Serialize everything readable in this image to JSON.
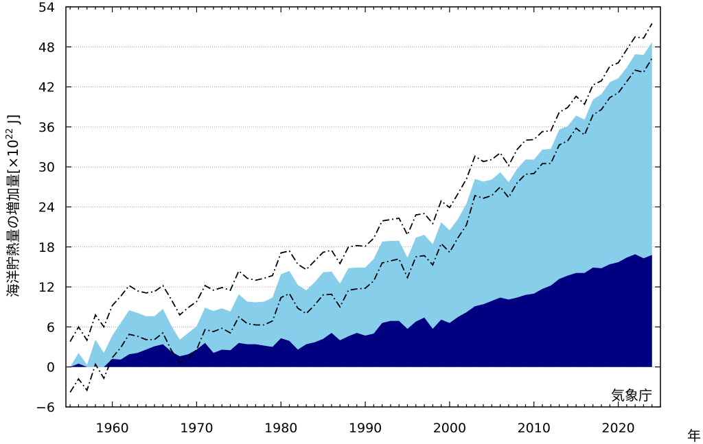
{
  "chart_data": {
    "type": "area",
    "ylabel": "海洋貯熱量の増加量",
    "ylabel_unit": "[×10",
    "ylabel_exp": "22",
    "ylabel_unit_end": " J]",
    "xlabel": "年",
    "credit": "気象庁",
    "xlim": [
      1954.5,
      2025
    ],
    "ylim": [
      -6,
      54
    ],
    "xticks": [
      1960,
      1970,
      1980,
      1990,
      2000,
      2010,
      2020
    ],
    "yticks": [
      -6,
      0,
      6,
      12,
      18,
      24,
      30,
      36,
      42,
      48,
      54
    ],
    "ytick_labels": [
      "−6",
      "0",
      "6",
      "12",
      "18",
      "24",
      "30",
      "36",
      "42",
      "48",
      "54"
    ],
    "xtick_labels": [
      "1960",
      "1970",
      "1980",
      "1990",
      "2000",
      "2010",
      "2020"
    ],
    "grid": "horizontal dotted",
    "colors": {
      "upper_layer": "#87ceeb",
      "lower_layer": "#000080",
      "uncertainty": "#000000"
    },
    "x": [
      1955,
      1956,
      1957,
      1958,
      1959,
      1960,
      1961,
      1962,
      1963,
      1964,
      1965,
      1966,
      1967,
      1968,
      1969,
      1970,
      1971,
      1972,
      1973,
      1974,
      1975,
      1976,
      1977,
      1978,
      1979,
      1980,
      1981,
      1982,
      1983,
      1984,
      1985,
      1986,
      1987,
      1988,
      1989,
      1990,
      1991,
      1992,
      1993,
      1994,
      1995,
      1996,
      1997,
      1998,
      1999,
      2000,
      2001,
      2002,
      2003,
      2004,
      2005,
      2006,
      2007,
      2008,
      2009,
      2010,
      2011,
      2012,
      2013,
      2014,
      2015,
      2016,
      2017,
      2018,
      2019,
      2020,
      2021,
      2022,
      2023,
      2024
    ],
    "series": [
      {
        "values": [
          0,
          2.1,
          0.3,
          4.1,
          2.1,
          4.7,
          6.6,
          8.5,
          8.1,
          7.6,
          7.6,
          8.7,
          6.2,
          4.1,
          5.1,
          6.1,
          8.9,
          8.4,
          8.8,
          8.3,
          10.9,
          9.8,
          9.7,
          9.8,
          10.4,
          13.9,
          14.4,
          12.3,
          11.5,
          12.7,
          14.2,
          14.3,
          12.5,
          14.8,
          14.9,
          14.9,
          16.2,
          18.8,
          18.9,
          18.9,
          16.4,
          19.4,
          19.8,
          18.4,
          21.7,
          20.5,
          22.2,
          24.5,
          28.2,
          27.8,
          28.1,
          29.2,
          27.7,
          29.7,
          31.1,
          31.1,
          32.6,
          32.7,
          35.6,
          36.1,
          37.7,
          37.1,
          40.1,
          40.9,
          42.7,
          43.3,
          44.9,
          46.9,
          46.8,
          48.7
        ]
      },
      {
        "values": [
          0,
          0.5,
          0,
          0,
          0,
          1.2,
          1.1,
          1.9,
          2.1,
          2.6,
          3.1,
          3.4,
          2.3,
          1.6,
          1.9,
          2.6,
          3.6,
          2.1,
          2.6,
          2.5,
          3.6,
          3.4,
          3.4,
          3.2,
          3,
          4.3,
          3.9,
          2.6,
          3.4,
          3.7,
          4.2,
          5.1,
          4,
          4.6,
          5.1,
          4.7,
          5,
          6.6,
          6.9,
          6.9,
          5.7,
          6.8,
          7.4,
          5.7,
          7.1,
          6.6,
          7.5,
          8.2,
          9.1,
          9.4,
          9.9,
          10.4,
          10.1,
          10.4,
          10.8,
          11,
          11.7,
          12.2,
          13.2,
          13.7,
          14.1,
          14.1,
          14.9,
          14.8,
          15.4,
          15.7,
          16.4,
          16.9,
          16.3,
          16.8
        ]
      },
      {
        "values": [
          3.8,
          6,
          4,
          7.8,
          6,
          9.2,
          10.6,
          12.2,
          11.4,
          11.1,
          11.3,
          12.2,
          10.1,
          7.8,
          8.9,
          9.8,
          12.2,
          11.5,
          11.9,
          11.5,
          14.4,
          13.3,
          13,
          13.3,
          13.7,
          17.1,
          17.4,
          15.4,
          14.6,
          15.9,
          17.2,
          17.5,
          15.5,
          18,
          18.2,
          18.1,
          19.3,
          21.9,
          22.1,
          22.3,
          19.8,
          22.8,
          23,
          21.5,
          24.9,
          23.9,
          26,
          28.2,
          31.6,
          30.8,
          31.1,
          32.1,
          30.2,
          32.6,
          34,
          34.1,
          35.3,
          35.4,
          38.2,
          38.9,
          40.6,
          39.4,
          42.3,
          42.9,
          45.1,
          45.6,
          47.6,
          49.5,
          49.3,
          51.5
        ]
      },
      {
        "values": [
          -3.8,
          -1.8,
          -3.5,
          0.4,
          -1.7,
          1.4,
          2.9,
          4.9,
          4.6,
          4.1,
          4.1,
          5.1,
          2.5,
          0.6,
          1.3,
          2.6,
          5.6,
          5.3,
          5.8,
          5.1,
          7.5,
          6.5,
          6.3,
          6.3,
          6.9,
          10.4,
          11,
          8.8,
          8,
          9.3,
          10.8,
          10.9,
          9,
          11.5,
          11.7,
          11.8,
          12.9,
          15.6,
          15.9,
          16.2,
          13.4,
          16.5,
          16.7,
          15.3,
          18.5,
          17.2,
          19.4,
          21.3,
          25.7,
          25.3,
          25.7,
          27,
          25.4,
          27.6,
          28.9,
          29,
          30.5,
          30.5,
          33.3,
          33.9,
          35.8,
          34.8,
          37.8,
          38.6,
          40.4,
          41.1,
          42.8,
          44.5,
          44.2,
          46.3
        ]
      }
    ]
  }
}
